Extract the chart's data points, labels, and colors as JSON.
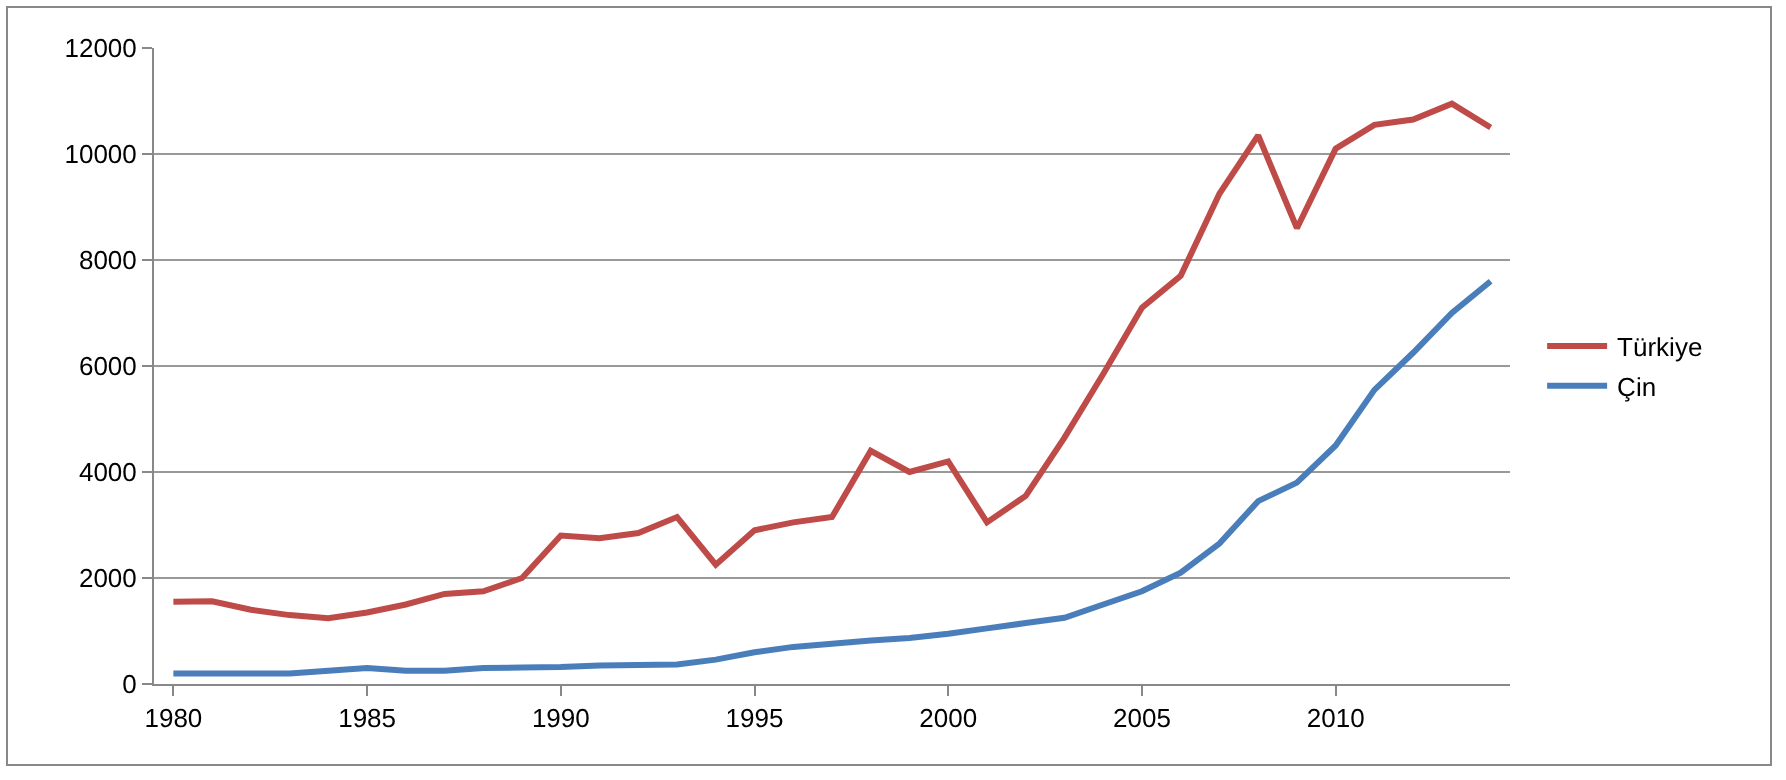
{
  "chart_data": {
    "type": "line",
    "x": [
      1980,
      1981,
      1982,
      1983,
      1984,
      1985,
      1986,
      1987,
      1988,
      1989,
      1990,
      1991,
      1992,
      1993,
      1994,
      1995,
      1996,
      1997,
      1998,
      1999,
      2000,
      2001,
      2002,
      2003,
      2004,
      2005,
      2006,
      2007,
      2008,
      2009,
      2010,
      2011,
      2012,
      2013,
      2014
    ],
    "series": [
      {
        "name": "Türkiye",
        "color": "#be4b48",
        "values": [
          1550,
          1560,
          1400,
          1300,
          1240,
          1350,
          1500,
          1700,
          1750,
          2000,
          2800,
          2750,
          2850,
          3150,
          2250,
          2900,
          3050,
          3150,
          4400,
          4000,
          4200,
          3050,
          3550,
          4650,
          5850,
          7100,
          7700,
          9250,
          10350,
          8600,
          10100,
          10550,
          10650,
          10950,
          10500
        ]
      },
      {
        "name": "Çin",
        "color": "#4a7ebb",
        "values": [
          200,
          200,
          200,
          200,
          250,
          300,
          250,
          250,
          300,
          310,
          320,
          350,
          360,
          370,
          460,
          600,
          700,
          760,
          820,
          870,
          950,
          1050,
          1150,
          1250,
          1500,
          1750,
          2100,
          2650,
          3450,
          3800,
          4500,
          5550,
          6250,
          7000,
          7600
        ]
      }
    ],
    "xlim": [
      1979.5,
      2014.5
    ],
    "xticks": [
      1980,
      1985,
      1990,
      1995,
      2000,
      2005,
      2010
    ],
    "ylim": [
      0,
      12000
    ],
    "yticks": [
      0,
      2000,
      4000,
      6000,
      8000,
      10000,
      12000
    ],
    "grid": "y",
    "legend": "right",
    "marker": "none",
    "line_style": "solid"
  }
}
